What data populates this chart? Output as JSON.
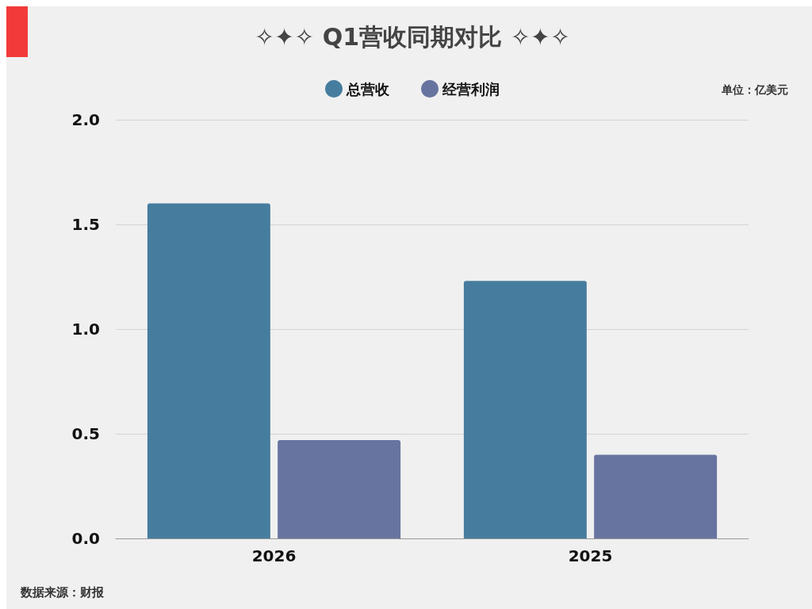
{
  "chart_data": {
    "type": "bar",
    "title": "✧✦✧ Q1营收同期对比 ✧✦✧",
    "categories": [
      "2026",
      "2025"
    ],
    "series": [
      {
        "name": "总营收",
        "color": "#467d9e",
        "values": [
          1.6,
          1.23
        ]
      },
      {
        "name": "经营利润",
        "color": "#6874a0",
        "values": [
          0.47,
          0.4
        ]
      }
    ],
    "ylim": [
      0,
      2
    ],
    "yticks": [
      {
        "value": 0,
        "label": "0.0"
      },
      {
        "value": 0.5,
        "label": "0.5"
      },
      {
        "value": 1,
        "label": "1.0"
      },
      {
        "value": 1.5,
        "label": "1.5"
      },
      {
        "value": 2,
        "label": "2.0"
      }
    ],
    "grid": "y",
    "legend": "top",
    "annotations": [
      "单位：亿美元",
      "数据来源：财报"
    ]
  }
}
